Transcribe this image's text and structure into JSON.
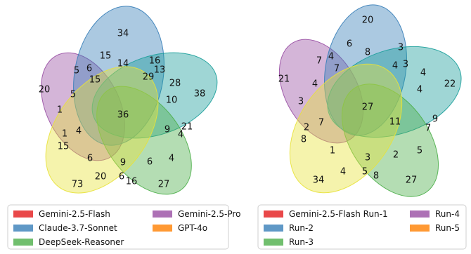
{
  "chart_data": [
    {
      "type": "venn",
      "title": "",
      "sets": [
        {
          "name": "Gemini-2.5-Flash",
          "color": "#e41a1c"
        },
        {
          "name": "Claude-3.7-Sonnet",
          "color": "#377eb8"
        },
        {
          "name": "DeepSeek-Reasoner",
          "color": "#4daf4a"
        },
        {
          "name": "Gemini-2.5-Pro",
          "color": "#984ea3"
        },
        {
          "name": "GPT-4o",
          "color": "#ff7f00"
        }
      ],
      "ellipse_colors": [
        "#984ea3",
        "#377eb8",
        "#1a9e9a",
        "#4daf4a",
        "#e8e23a"
      ],
      "region_values": [
        "34",
        "15",
        "14",
        "16",
        "13",
        "5",
        "6",
        "15",
        "20",
        "29",
        "28",
        "5",
        "10",
        "38",
        "1",
        "36",
        "9",
        "21",
        "1",
        "4",
        "4",
        "15",
        "6",
        "9",
        "6",
        "4",
        "20",
        "6",
        "16",
        "73",
        "27"
      ],
      "legend_rows": [
        [
          "Gemini-2.5-Flash",
          "Gemini-2.5-Pro"
        ],
        [
          "Claude-3.7-Sonnet",
          "GPT-4o"
        ],
        [
          "DeepSeek-Reasoner"
        ]
      ]
    },
    {
      "type": "venn",
      "title": "",
      "sets": [
        {
          "name": "Gemini-2.5-Flash Run-1",
          "color": "#e41a1c"
        },
        {
          "name": "Run-2",
          "color": "#377eb8"
        },
        {
          "name": "Run-3",
          "color": "#4daf4a"
        },
        {
          "name": "Run-4",
          "color": "#984ea3"
        },
        {
          "name": "Run-5",
          "color": "#ff7f00"
        }
      ],
      "ellipse_colors": [
        "#984ea3",
        "#377eb8",
        "#1a9e9a",
        "#4daf4a",
        "#e8e23a"
      ],
      "region_values": [
        "20",
        "6",
        "8",
        "3",
        "4",
        "7",
        "4",
        "7",
        "21",
        "3",
        "4",
        "4",
        "4",
        "22",
        "3",
        "27",
        "11",
        "9",
        "2",
        "7",
        "7",
        "8",
        "1",
        "3",
        "2",
        "5",
        "34",
        "4",
        "5",
        "8",
        "27"
      ],
      "legend_rows": [
        [
          "Gemini-2.5-Flash Run-1",
          "Run-4"
        ],
        [
          "Run-2",
          "Run-5"
        ],
        [
          "Run-3"
        ]
      ]
    }
  ]
}
